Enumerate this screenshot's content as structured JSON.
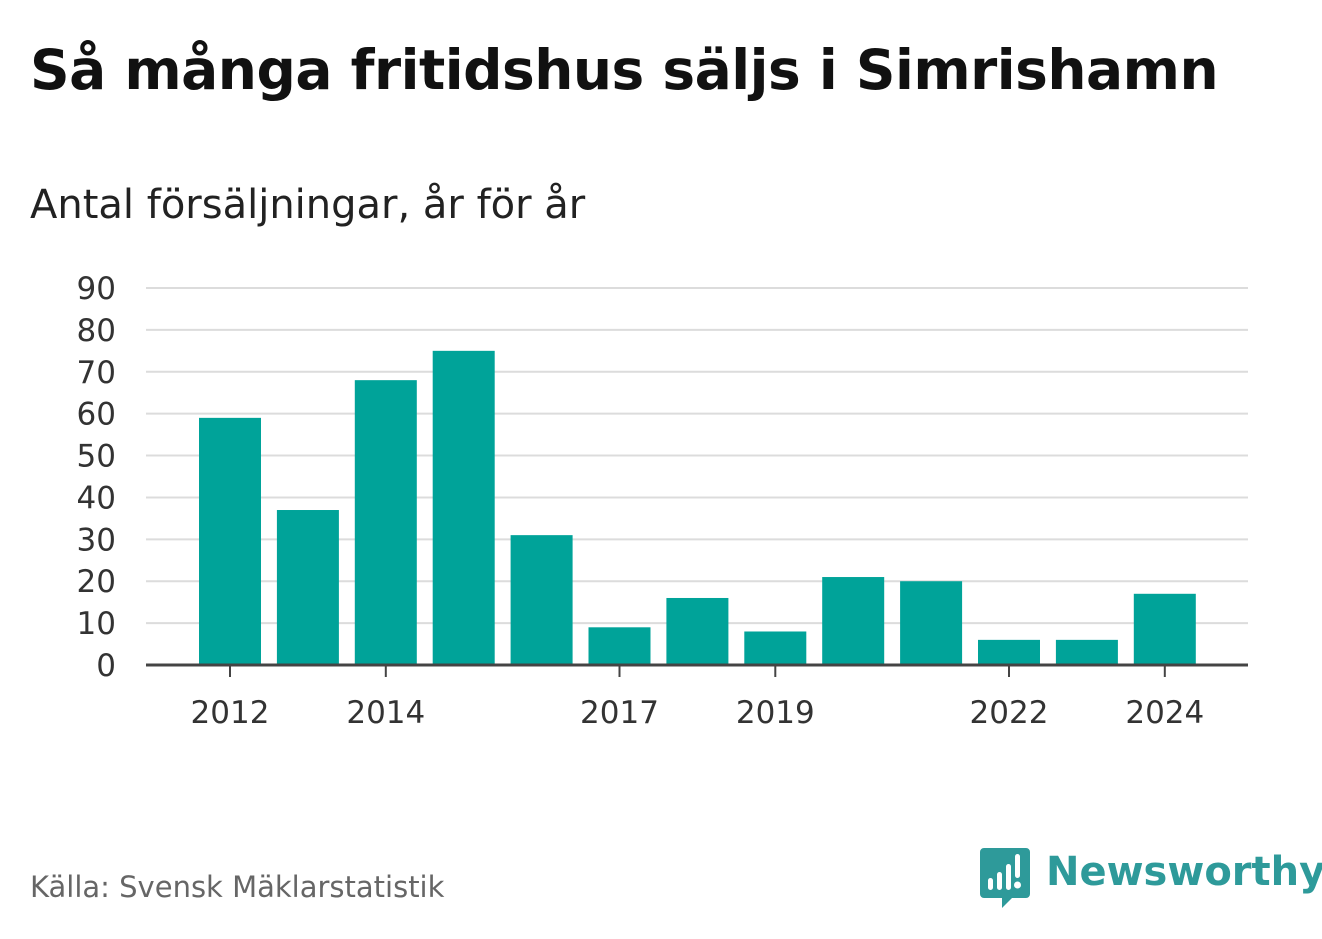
{
  "title": "Så många fritidshus säljs i Simrishamn",
  "subtitle": "Antal försäljningar, år för år",
  "source": "Källa: Svensk Mäklarstatistik",
  "brand": {
    "name": "Newsworthy",
    "icon": "newsworthy-logo-icon",
    "color": "#2e9a9a"
  },
  "colors": {
    "bar": "#00a399",
    "grid": "#dcdcdc",
    "axis": "#444444"
  },
  "chart_data": {
    "type": "bar",
    "categories": [
      "2012",
      "2013",
      "2014",
      "2015",
      "2016",
      "2017",
      "2018",
      "2019",
      "2020",
      "2021",
      "2022",
      "2023",
      "2024"
    ],
    "values": [
      59,
      37,
      68,
      75,
      31,
      9,
      16,
      8,
      21,
      20,
      6,
      6,
      17
    ],
    "x_tick_labels": [
      "2012",
      "2014",
      "2017",
      "2019",
      "2022",
      "2024"
    ],
    "y_ticks": [
      0,
      10,
      20,
      30,
      40,
      50,
      60,
      70,
      80,
      90
    ],
    "ylim": [
      0,
      90
    ],
    "grid": true,
    "legend": "none"
  }
}
